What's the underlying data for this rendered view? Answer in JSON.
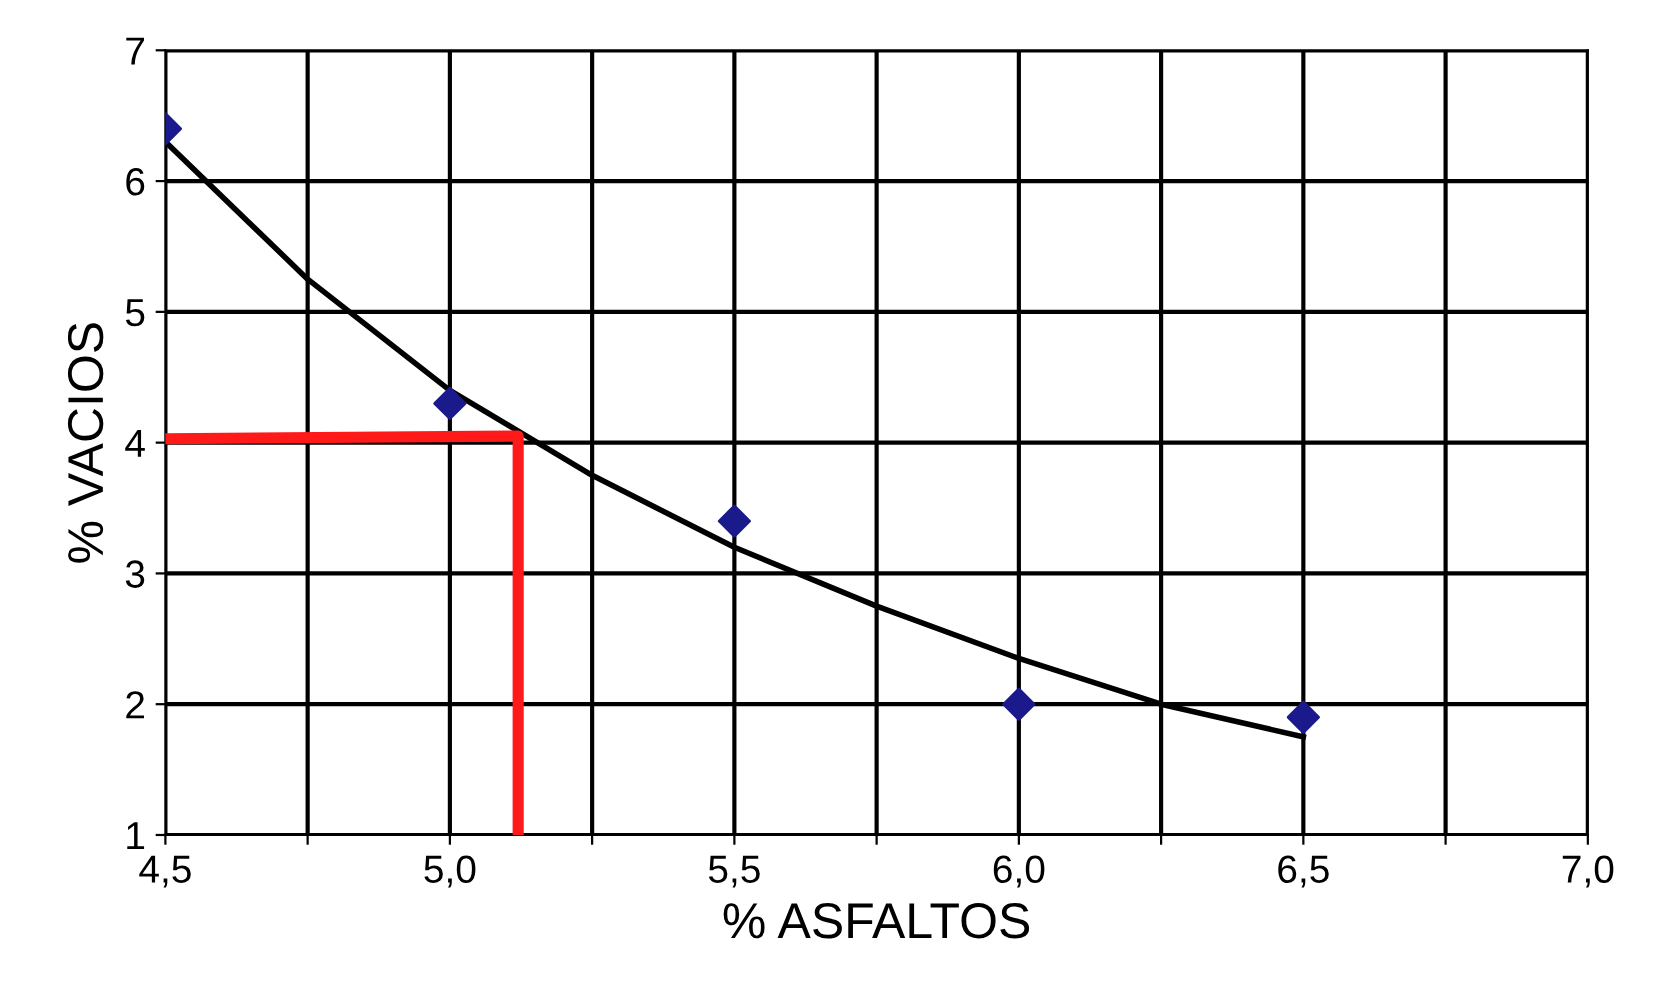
{
  "chart_data": {
    "type": "scatter",
    "xlabel": "% ASFALTOS",
    "ylabel": "% VACIOS",
    "xlim": [
      4.5,
      7.0
    ],
    "ylim": [
      1,
      7
    ],
    "xticks": [
      {
        "value": 4.5,
        "label": "4,5"
      },
      {
        "value": 4.75,
        "label": null
      },
      {
        "value": 5.0,
        "label": "5,0"
      },
      {
        "value": 5.25,
        "label": null
      },
      {
        "value": 5.5,
        "label": "5,5"
      },
      {
        "value": 5.75,
        "label": null
      },
      {
        "value": 6.0,
        "label": "6,0"
      },
      {
        "value": 6.25,
        "label": null
      },
      {
        "value": 6.5,
        "label": "6,5"
      },
      {
        "value": 6.75,
        "label": null
      },
      {
        "value": 7.0,
        "label": "7,0"
      }
    ],
    "yticks": [
      1,
      2,
      3,
      4,
      5,
      6,
      7
    ],
    "grid": true,
    "series": [
      {
        "color": "#1a1a8c",
        "marker": "diamond",
        "x": [
          4.5,
          5.0,
          5.5,
          6.0,
          6.5
        ],
        "values": [
          6.4,
          4.3,
          3.4,
          2.0,
          1.9
        ]
      },
      {
        "type": "line",
        "color": "#000000",
        "marker": "none",
        "x": [
          4.5,
          4.75,
          5.0,
          5.25,
          5.5,
          5.75,
          6.0,
          6.25,
          6.5
        ],
        "values": [
          6.3,
          5.25,
          4.4,
          3.75,
          3.2,
          2.75,
          2.35,
          2.0,
          1.75
        ]
      },
      {
        "type": "line",
        "color": "#ff1a1a",
        "marker": "none",
        "x": [
          4.5,
          5.12,
          5.12
        ],
        "values": [
          4.03,
          4.05,
          1.0
        ]
      }
    ]
  }
}
